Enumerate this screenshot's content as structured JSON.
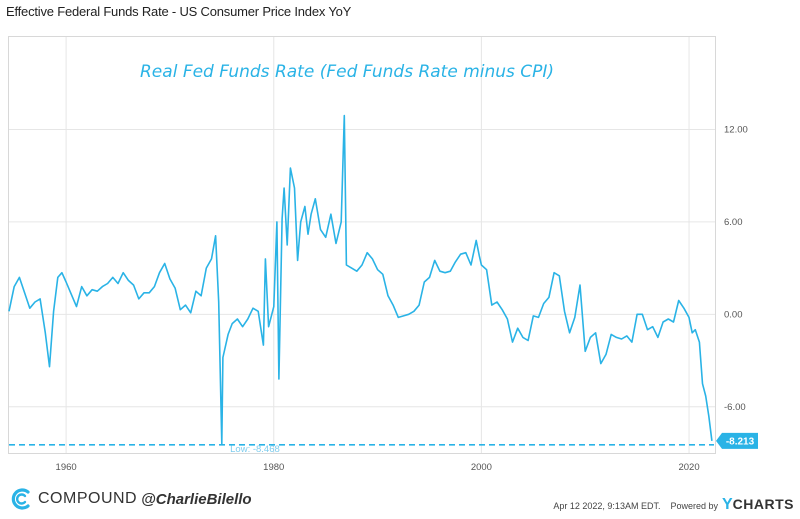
{
  "header": {
    "title": "Effective Federal Funds Rate - US Consumer Price Index YoY"
  },
  "annotation": "Real Fed Funds Rate (Fed Funds Rate minus CPI)",
  "chart_data": {
    "type": "line",
    "title": "Effective Federal Funds Rate - US Consumer Price Index YoY",
    "subtitle": "Real Fed Funds Rate (Fed Funds Rate minus CPI)",
    "xlabel": "",
    "ylabel": "",
    "x_ticks": [
      "1960",
      "1980",
      "2000",
      "2020"
    ],
    "x_tick_values": [
      1960,
      1980,
      2000,
      2020
    ],
    "y_ticks": [
      "12.00",
      "6.00",
      "0.00",
      "-6.00"
    ],
    "y_tick_values": [
      12,
      6,
      0,
      -6
    ],
    "xlim": [
      1954.5,
      2022.5
    ],
    "ylim": [
      -9,
      18
    ],
    "grid": true,
    "series": [
      {
        "name": "Real Fed Funds Rate",
        "color": "#2ab3e6",
        "points": [
          [
            1954.5,
            0.2
          ],
          [
            1955.0,
            1.8
          ],
          [
            1955.5,
            2.4
          ],
          [
            1956.0,
            1.4
          ],
          [
            1956.5,
            0.4
          ],
          [
            1957.0,
            0.8
          ],
          [
            1957.5,
            1.0
          ],
          [
            1958.0,
            -1.2
          ],
          [
            1958.4,
            -3.4
          ],
          [
            1958.8,
            0.2
          ],
          [
            1959.2,
            2.4
          ],
          [
            1959.6,
            2.7
          ],
          [
            1960.0,
            2.1
          ],
          [
            1960.5,
            1.3
          ],
          [
            1961.0,
            0.5
          ],
          [
            1961.5,
            1.8
          ],
          [
            1962.0,
            1.2
          ],
          [
            1962.5,
            1.6
          ],
          [
            1963.0,
            1.5
          ],
          [
            1963.5,
            1.8
          ],
          [
            1964.0,
            2.0
          ],
          [
            1964.5,
            2.4
          ],
          [
            1965.0,
            2.0
          ],
          [
            1965.5,
            2.7
          ],
          [
            1966.0,
            2.2
          ],
          [
            1966.5,
            1.9
          ],
          [
            1967.0,
            1.0
          ],
          [
            1967.5,
            1.4
          ],
          [
            1968.0,
            1.4
          ],
          [
            1968.5,
            1.8
          ],
          [
            1969.0,
            2.7
          ],
          [
            1969.5,
            3.3
          ],
          [
            1970.0,
            2.3
          ],
          [
            1970.5,
            1.7
          ],
          [
            1971.0,
            0.3
          ],
          [
            1971.5,
            0.6
          ],
          [
            1972.0,
            0.1
          ],
          [
            1972.5,
            1.5
          ],
          [
            1973.0,
            1.2
          ],
          [
            1973.5,
            3.0
          ],
          [
            1974.0,
            3.6
          ],
          [
            1974.4,
            5.1
          ],
          [
            1974.7,
            0.8
          ],
          [
            1975.0,
            -8.4
          ],
          [
            1975.1,
            -2.8
          ],
          [
            1975.6,
            -1.3
          ],
          [
            1976.0,
            -0.6
          ],
          [
            1976.5,
            -0.3
          ],
          [
            1977.0,
            -0.8
          ],
          [
            1977.5,
            -0.3
          ],
          [
            1978.0,
            0.4
          ],
          [
            1978.5,
            0.2
          ],
          [
            1979.0,
            -2.0
          ],
          [
            1979.2,
            3.6
          ],
          [
            1979.5,
            -0.8
          ],
          [
            1980.0,
            0.5
          ],
          [
            1980.3,
            6.0
          ],
          [
            1980.5,
            -4.2
          ],
          [
            1980.8,
            6.2
          ],
          [
            1981.0,
            8.2
          ],
          [
            1981.3,
            4.5
          ],
          [
            1981.6,
            9.5
          ],
          [
            1982.0,
            8.2
          ],
          [
            1982.3,
            3.5
          ],
          [
            1982.6,
            6.0
          ],
          [
            1983.0,
            7.0
          ],
          [
            1983.3,
            5.2
          ],
          [
            1983.6,
            6.5
          ],
          [
            1984.0,
            7.5
          ],
          [
            1984.5,
            5.5
          ],
          [
            1985.0,
            5.0
          ],
          [
            1985.5,
            6.5
          ],
          [
            1986.0,
            4.6
          ],
          [
            1986.5,
            6.0
          ],
          [
            1986.8,
            12.9
          ],
          [
            1987.0,
            3.2
          ],
          [
            1987.5,
            3.0
          ],
          [
            1988.0,
            2.8
          ],
          [
            1988.5,
            3.2
          ],
          [
            1989.0,
            4.0
          ],
          [
            1989.5,
            3.6
          ],
          [
            1990.0,
            2.9
          ],
          [
            1990.5,
            2.6
          ],
          [
            1991.0,
            1.2
          ],
          [
            1991.5,
            0.6
          ],
          [
            1992.0,
            -0.2
          ],
          [
            1992.5,
            -0.1
          ],
          [
            1993.0,
            0.0
          ],
          [
            1993.5,
            0.2
          ],
          [
            1994.0,
            0.6
          ],
          [
            1994.5,
            2.1
          ],
          [
            1995.0,
            2.4
          ],
          [
            1995.5,
            3.5
          ],
          [
            1996.0,
            2.8
          ],
          [
            1996.5,
            2.7
          ],
          [
            1997.0,
            2.8
          ],
          [
            1997.5,
            3.4
          ],
          [
            1998.0,
            3.9
          ],
          [
            1998.5,
            4.0
          ],
          [
            1999.0,
            3.2
          ],
          [
            1999.5,
            4.8
          ],
          [
            1999.8,
            3.8
          ],
          [
            2000.0,
            3.2
          ],
          [
            2000.5,
            2.9
          ],
          [
            2001.0,
            0.6
          ],
          [
            2001.5,
            0.8
          ],
          [
            2002.0,
            0.3
          ],
          [
            2002.5,
            -0.3
          ],
          [
            2003.0,
            -1.8
          ],
          [
            2003.5,
            -0.9
          ],
          [
            2004.0,
            -1.5
          ],
          [
            2004.5,
            -1.7
          ],
          [
            2005.0,
            -0.1
          ],
          [
            2005.5,
            -0.2
          ],
          [
            2006.0,
            0.7
          ],
          [
            2006.5,
            1.1
          ],
          [
            2007.0,
            2.7
          ],
          [
            2007.5,
            2.5
          ],
          [
            2008.0,
            0.2
          ],
          [
            2008.5,
            -1.2
          ],
          [
            2009.0,
            -0.2
          ],
          [
            2009.5,
            1.9
          ],
          [
            2010.0,
            -2.4
          ],
          [
            2010.5,
            -1.5
          ],
          [
            2011.0,
            -1.2
          ],
          [
            2011.5,
            -3.2
          ],
          [
            2012.0,
            -2.6
          ],
          [
            2012.5,
            -1.3
          ],
          [
            2013.0,
            -1.5
          ],
          [
            2013.5,
            -1.6
          ],
          [
            2014.0,
            -1.4
          ],
          [
            2014.5,
            -1.8
          ],
          [
            2015.0,
            0.0
          ],
          [
            2015.5,
            0.0
          ],
          [
            2016.0,
            -1.0
          ],
          [
            2016.5,
            -0.8
          ],
          [
            2017.0,
            -1.5
          ],
          [
            2017.5,
            -0.5
          ],
          [
            2018.0,
            -0.3
          ],
          [
            2018.5,
            -0.5
          ],
          [
            2019.0,
            0.9
          ],
          [
            2019.5,
            0.4
          ],
          [
            2020.0,
            -0.2
          ],
          [
            2020.3,
            -1.2
          ],
          [
            2020.6,
            -1.0
          ],
          [
            2021.0,
            -1.8
          ],
          [
            2021.3,
            -4.5
          ],
          [
            2021.6,
            -5.3
          ],
          [
            2021.9,
            -6.6
          ],
          [
            2022.2,
            -8.213
          ]
        ]
      }
    ],
    "annotations": [
      {
        "text": "Low: -8.468",
        "value": -8.468,
        "year": 1974.5
      },
      {
        "text": "-8.213",
        "value": -8.213,
        "label": "last value"
      }
    ]
  },
  "footer": {
    "timestamp": "Apr 12 2022, 9:13AM EDT.",
    "powered_by": "Powered by",
    "logo_y": "Y",
    "logo_charts": "CHARTS"
  },
  "brand": {
    "name": "COMPOUND",
    "handle": "@CharlieBilello",
    "color": "#2ab3e6"
  }
}
